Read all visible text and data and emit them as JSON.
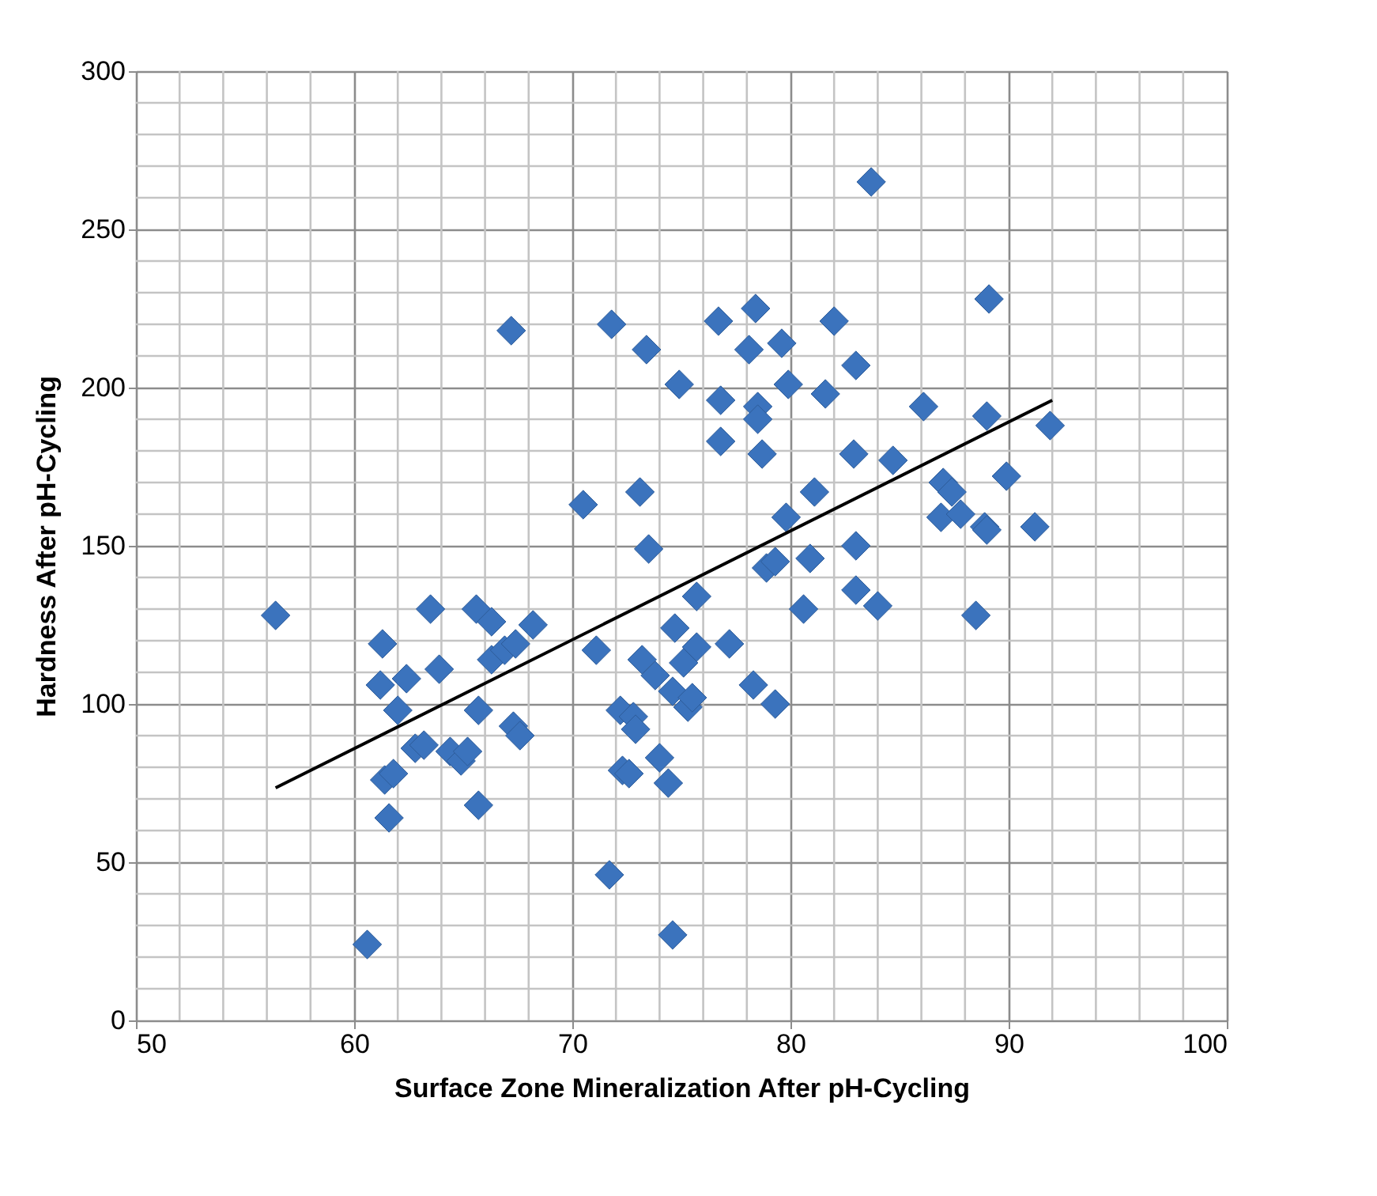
{
  "chart_data": {
    "type": "scatter",
    "xlabel": "Surface Zone Mineralization After pH-Cycling",
    "ylabel": "Hardness After pH-Cycling",
    "xlim": [
      50,
      100
    ],
    "ylim": [
      0,
      300
    ],
    "xticks": [
      50,
      60,
      70,
      80,
      90,
      100
    ],
    "yticks": [
      0,
      50,
      100,
      150,
      200,
      250,
      300
    ],
    "grid": true,
    "marker": "diamond",
    "series": [
      {
        "color": "#3b73bd",
        "x": [
          56.4,
          60.6,
          61.3,
          61.2,
          61.4,
          61.6,
          61.8,
          62.0,
          62.4,
          62.8,
          63.2,
          63.5,
          63.9,
          64.4,
          64.9,
          65.2,
          65.6,
          65.7,
          65.7,
          66.3,
          66.3,
          66.9,
          67.2,
          67.4,
          67.3,
          67.6,
          68.2,
          70.5,
          71.1,
          71.8,
          71.7,
          72.2,
          72.3,
          72.6,
          72.8,
          72.9,
          73.1,
          73.2,
          73.4,
          73.5,
          73.8,
          74.0,
          74.4,
          74.6,
          74.7,
          74.6,
          74.9,
          75.1,
          75.3,
          75.5,
          75.7,
          75.7,
          76.7,
          76.8,
          76.8,
          77.2,
          78.1,
          78.4,
          78.5,
          78.5,
          78.3,
          78.7,
          78.9,
          79.3,
          79.3,
          79.6,
          79.8,
          79.9,
          80.6,
          80.9,
          81.1,
          81.6,
          82.0,
          82.9,
          83.0,
          83.0,
          83.0,
          83.7,
          84.0,
          84.7,
          86.1,
          86.9,
          87.0,
          87.4,
          87.8,
          88.5,
          88.9,
          89.0,
          89.1,
          89.0,
          89.9,
          91.2,
          91.9
        ],
        "values": [
          128,
          24,
          119,
          106,
          76,
          64,
          78,
          98,
          108,
          86,
          87,
          130,
          111,
          85,
          82,
          85,
          130,
          98,
          68,
          126,
          114,
          117,
          218,
          119,
          93,
          90,
          125,
          163,
          117,
          220,
          46,
          98,
          79,
          78,
          96,
          92,
          167,
          114,
          212,
          149,
          109,
          83,
          75,
          104,
          124,
          27,
          201,
          113,
          99,
          102,
          118,
          134,
          221,
          196,
          183,
          119,
          212,
          225,
          194,
          190,
          106,
          179,
          143,
          145,
          100,
          214,
          159,
          201,
          130,
          146,
          167,
          198,
          221,
          179,
          207,
          150,
          136,
          265,
          131,
          177,
          194,
          159,
          170,
          167,
          160,
          128,
          156,
          155,
          228,
          191,
          172,
          156,
          188
        ]
      },
      {
        "type": "line",
        "color": "#000000",
        "line_style": "solid",
        "marker": "none",
        "x": [
          56.4,
          92
        ],
        "values": [
          73.5,
          196
        ]
      }
    ]
  }
}
